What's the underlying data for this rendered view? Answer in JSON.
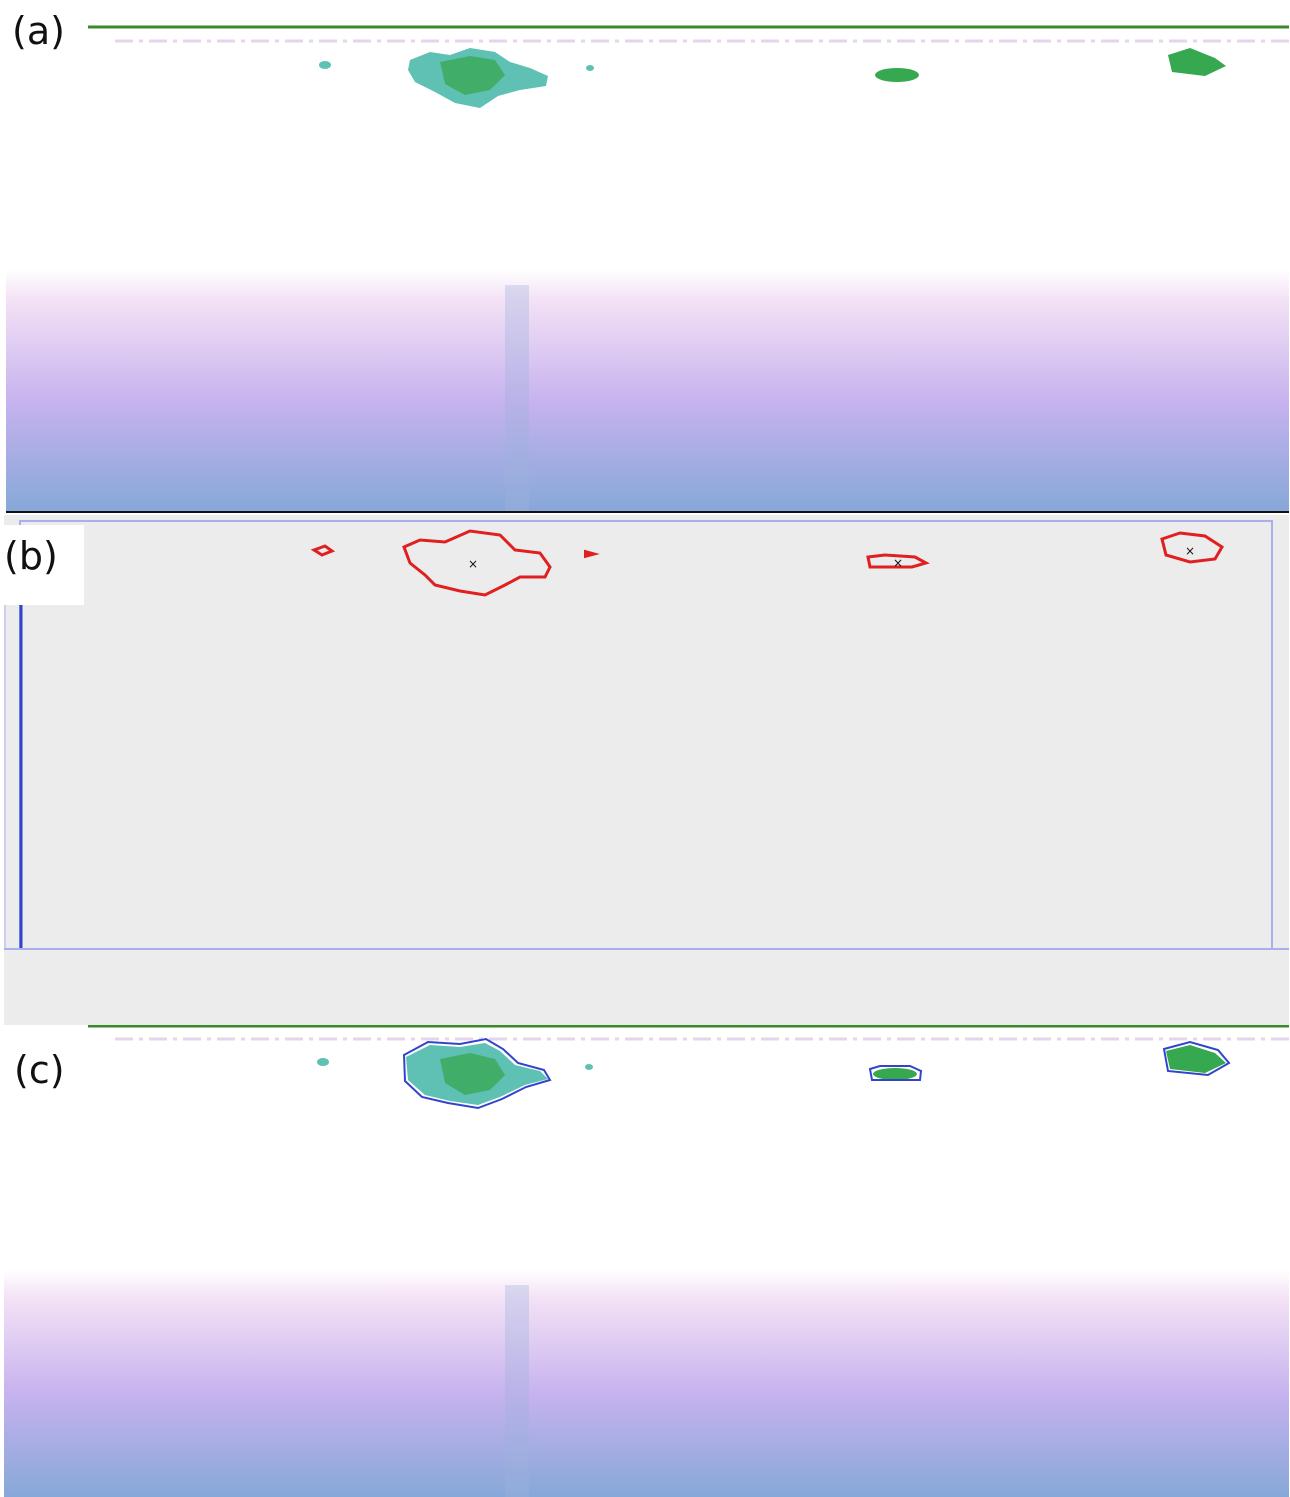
{
  "panels": [
    {
      "label": "(a)"
    },
    {
      "label": "(b)"
    },
    {
      "label": "(c)"
    }
  ],
  "colors": {
    "surface_line": "#3a8a2a",
    "school_fill_teal": "#5fc0b4",
    "school_fill_green": "#35a850",
    "contour_red": "#e02020",
    "outline_blue": "#3344cc",
    "background_gray": "#ececec",
    "frame_blue": "#aab0ee",
    "seabed_top": "#f2dcf6",
    "seabed_mid": "#c8b0ee",
    "seabed_bottom": "#86a8d8"
  }
}
